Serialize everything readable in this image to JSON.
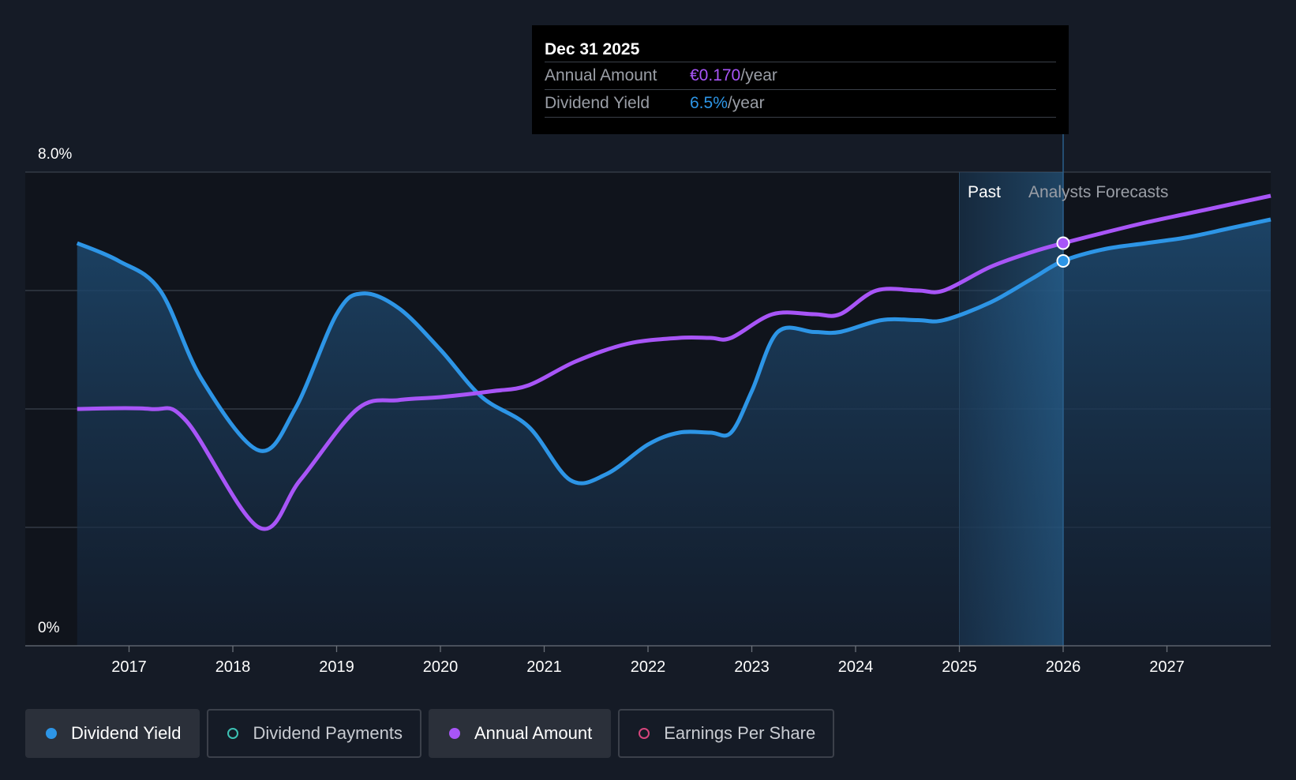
{
  "tooltip": {
    "date": "Dec 31 2025",
    "rows": [
      {
        "label": "Annual Amount",
        "value": "€0.170",
        "unit": "/year"
      },
      {
        "label": "Dividend Yield",
        "value": "6.5%",
        "unit": "/year"
      }
    ]
  },
  "regions": {
    "past": "Past",
    "forecast": "Analysts Forecasts"
  },
  "legend": [
    {
      "label": "Dividend Yield",
      "active": true,
      "color": "#2d95e6",
      "filled": true
    },
    {
      "label": "Dividend Payments",
      "active": false,
      "color": "#3cc2b4",
      "filled": false
    },
    {
      "label": "Annual Amount",
      "active": true,
      "color": "#a855f7",
      "filled": true
    },
    {
      "label": "Earnings Per Share",
      "active": false,
      "color": "#d6457c",
      "filled": false
    }
  ],
  "chart_data": {
    "type": "line",
    "x_tick_labels": [
      "2017",
      "2018",
      "2019",
      "2020",
      "2021",
      "2022",
      "2023",
      "2024",
      "2025",
      "2026",
      "2027"
    ],
    "y_tick_labels": [
      "8.0%",
      "0%"
    ],
    "ylim": [
      0,
      8
    ],
    "xlim": [
      2016.0,
      2028.0
    ],
    "grid": true,
    "highlight_x": 2026.0,
    "series": [
      {
        "name": "Dividend Yield",
        "color": "#2d95e6",
        "fill": true,
        "x": [
          2016.5,
          2016.9,
          2017.3,
          2017.7,
          2018.25,
          2018.6,
          2019.0,
          2019.25,
          2019.6,
          2020.0,
          2020.4,
          2020.85,
          2021.25,
          2021.6,
          2022.0,
          2022.3,
          2022.6,
          2022.8,
          2023.0,
          2023.25,
          2023.6,
          2023.85,
          2024.25,
          2024.6,
          2024.85,
          2025.3,
          2025.7,
          2026.0,
          2026.4,
          2026.8,
          2027.2,
          2027.6,
          2028.0
        ],
        "values": [
          6.8,
          6.5,
          6.0,
          4.5,
          3.3,
          4.0,
          5.6,
          5.95,
          5.7,
          5.0,
          4.2,
          3.7,
          2.8,
          2.9,
          3.4,
          3.6,
          3.6,
          3.6,
          4.3,
          5.3,
          5.3,
          5.3,
          5.5,
          5.5,
          5.5,
          5.8,
          6.2,
          6.5,
          6.7,
          6.8,
          6.9,
          7.05,
          7.2
        ]
      },
      {
        "name": "Annual Amount",
        "color": "#a855f7",
        "fill": false,
        "x": [
          2016.5,
          2017.2,
          2017.55,
          2018.25,
          2018.65,
          2019.2,
          2019.6,
          2020.0,
          2020.5,
          2020.85,
          2021.3,
          2021.8,
          2022.3,
          2022.6,
          2022.8,
          2023.2,
          2023.6,
          2023.85,
          2024.2,
          2024.6,
          2024.85,
          2025.3,
          2025.7,
          2026.0,
          2026.4,
          2026.8,
          2027.2,
          2027.6,
          2028.0
        ],
        "values": [
          4.0,
          4.0,
          3.8,
          2.0,
          2.8,
          4.0,
          4.15,
          4.2,
          4.3,
          4.4,
          4.8,
          5.1,
          5.2,
          5.2,
          5.2,
          5.6,
          5.6,
          5.6,
          6.0,
          6.0,
          6.0,
          6.4,
          6.65,
          6.8,
          6.98,
          7.15,
          7.3,
          7.45,
          7.6
        ]
      }
    ]
  }
}
